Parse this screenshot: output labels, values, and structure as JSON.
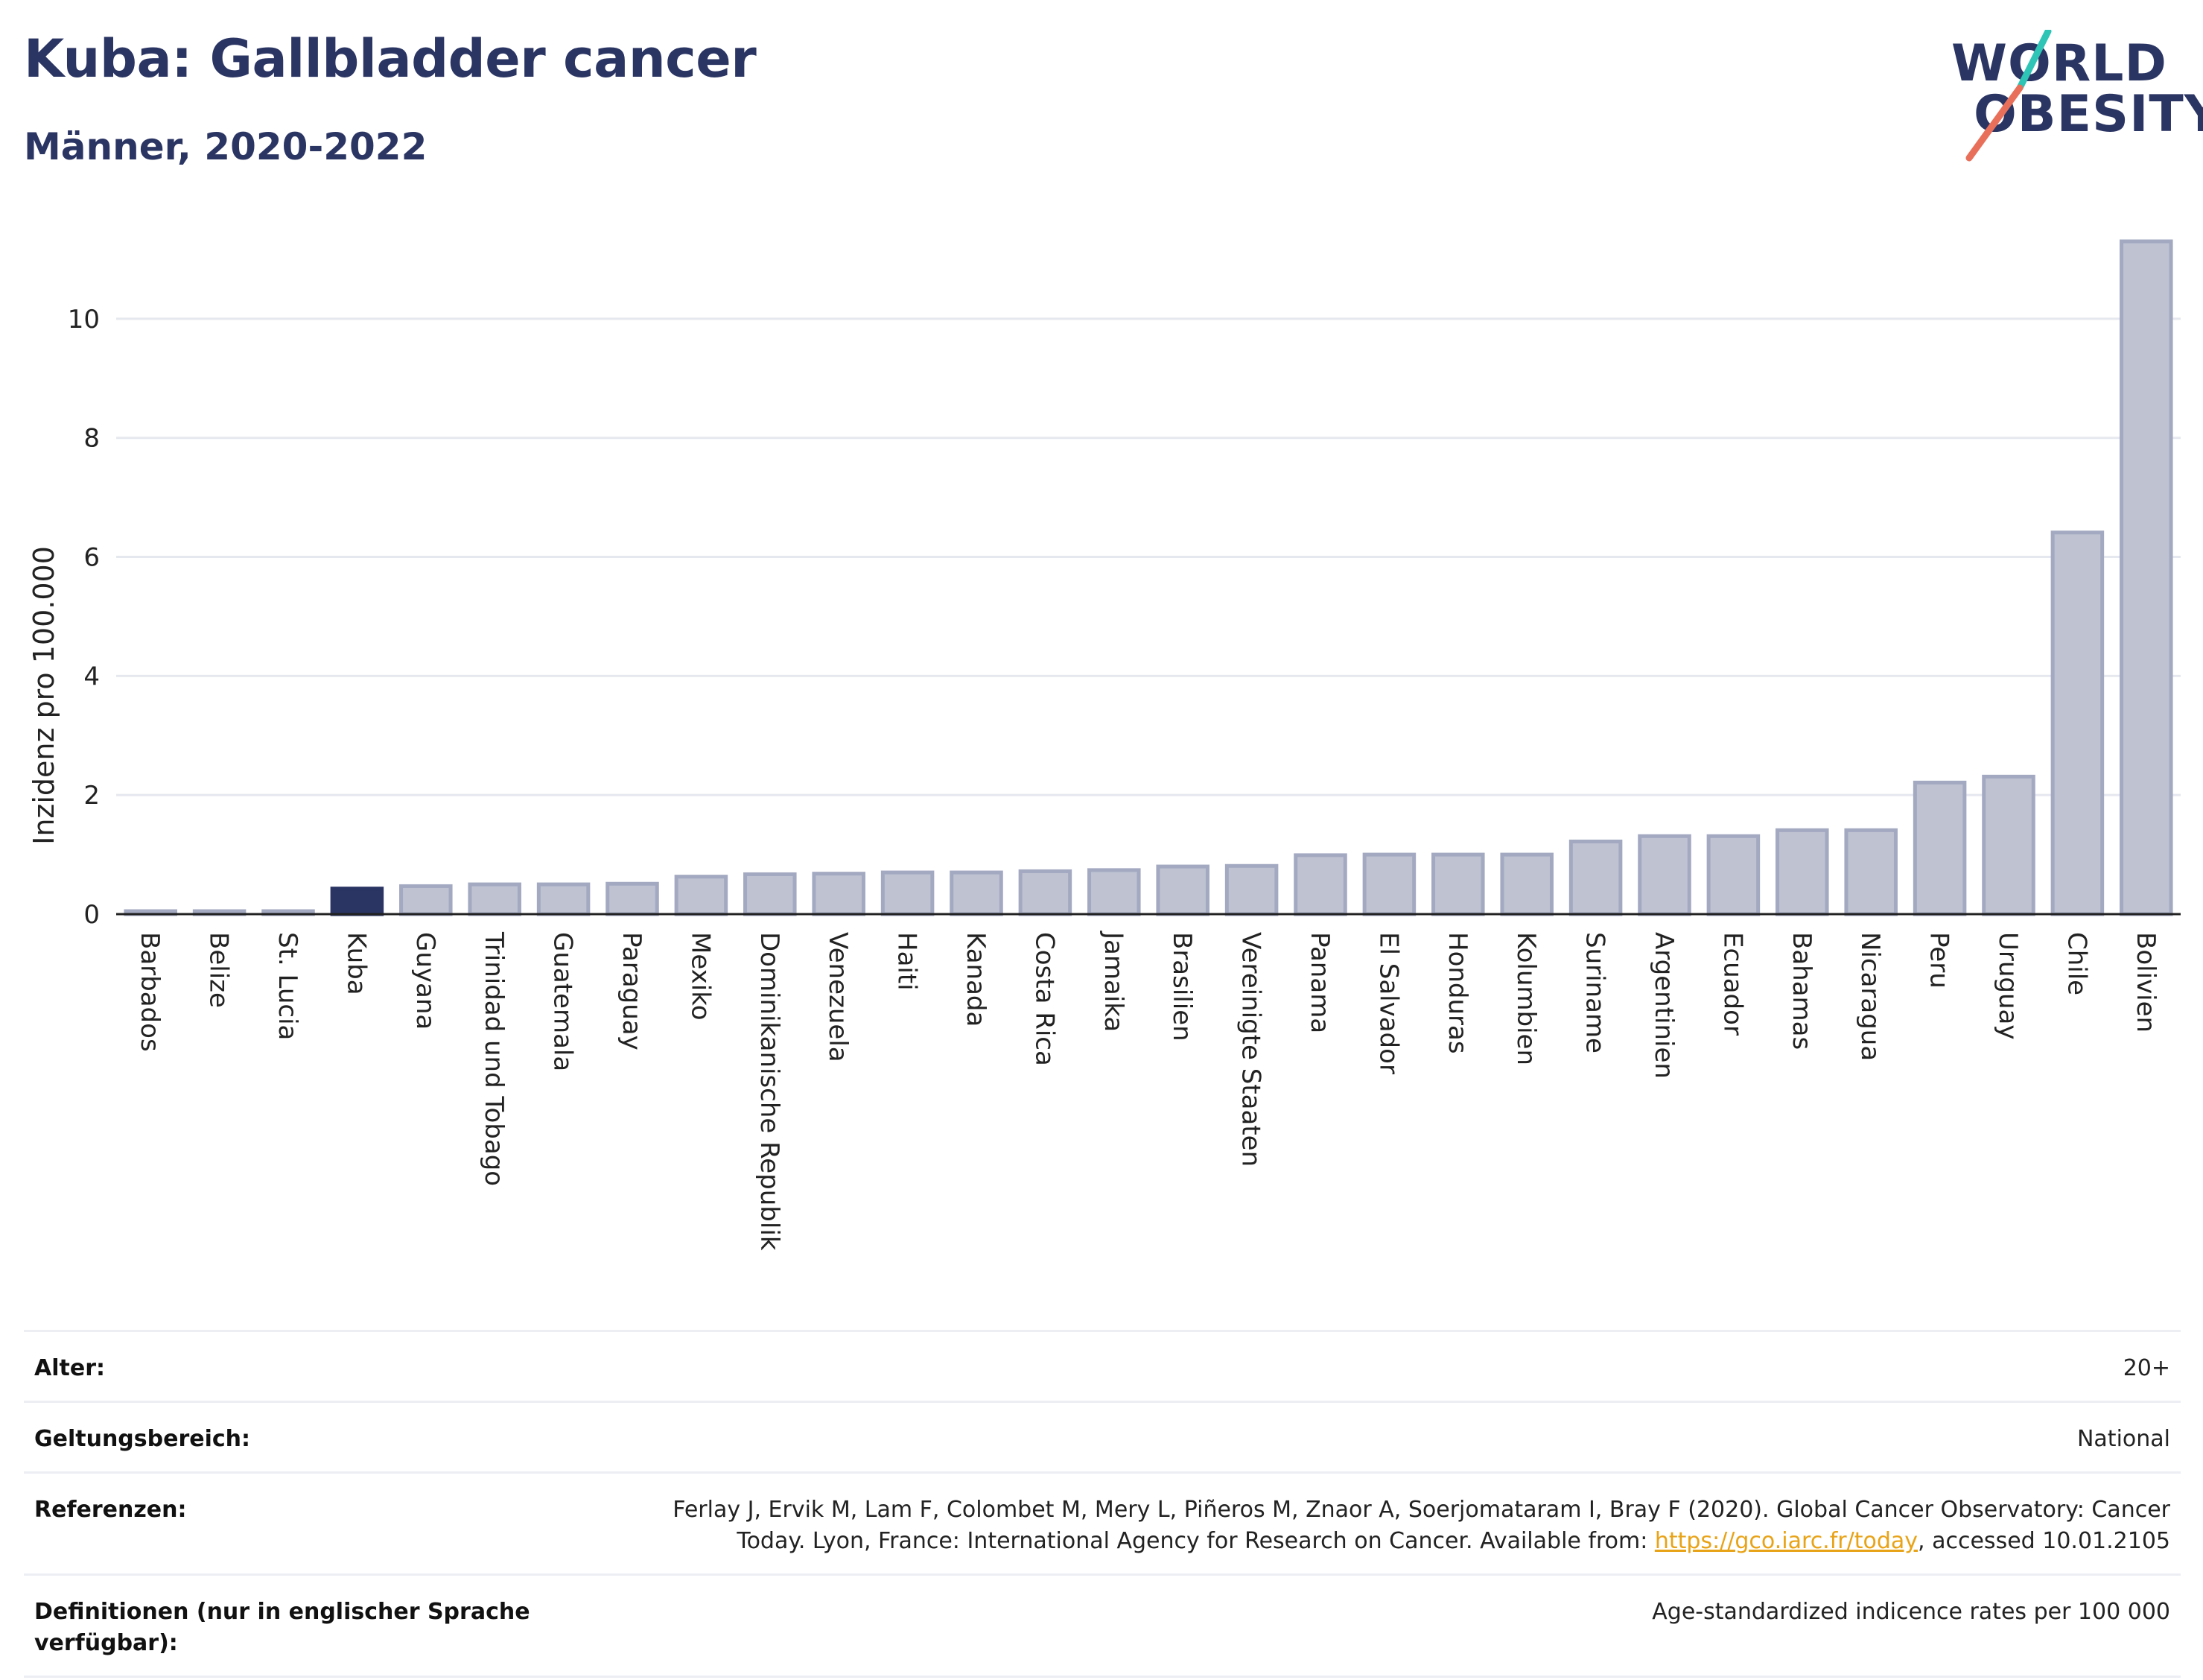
{
  "header": {
    "title": "Kuba: Gallbladder cancer",
    "subtitle": "Männer, 2020-2022"
  },
  "logo": {
    "line1": "WORLD",
    "line2": "OBESITY",
    "accent_colors": [
      "#2ec4b6",
      "#e8705b"
    ]
  },
  "colors": {
    "highlight": "#2b3563",
    "bar": "#bec2d1",
    "bar_border": "#a3a9c1",
    "grid": "#e6e8ef"
  },
  "chart_data": {
    "type": "bar",
    "ylabel": "Inzidenz pro 100.000",
    "xlabel": "",
    "ylim": [
      0,
      11.6
    ],
    "yticks": [
      0,
      2,
      4,
      6,
      8,
      10
    ],
    "grid": true,
    "highlight_category": "Kuba",
    "categories": [
      "Barbados",
      "Belize",
      "St. Lucia",
      "Kuba",
      "Guyana",
      "Trinidad und Tobago",
      "Guatemala",
      "Paraguay",
      "Mexiko",
      "Dominikanische Republik",
      "Venezuela",
      "Haiti",
      "Kanada",
      "Costa Rica",
      "Jamaika",
      "Brasilien",
      "Vereinigte Staaten",
      "Panama",
      "El Salvador",
      "Honduras",
      "Kolumbien",
      "Suriname",
      "Argentinien",
      "Ecuador",
      "Bahamas",
      "Nicaragua",
      "Peru",
      "Uruguay",
      "Chile",
      "Bolivien"
    ],
    "values": [
      0.05,
      0.05,
      0.05,
      0.43,
      0.47,
      0.5,
      0.5,
      0.51,
      0.63,
      0.67,
      0.68,
      0.7,
      0.7,
      0.72,
      0.74,
      0.8,
      0.81,
      0.99,
      1.0,
      1.0,
      1.0,
      1.22,
      1.31,
      1.31,
      1.41,
      1.41,
      2.21,
      2.31,
      6.41,
      11.3
    ]
  },
  "meta": [
    {
      "key": "Alter:",
      "value": "20+"
    },
    {
      "key": "Geltungsbereich:",
      "value": "National"
    },
    {
      "key": "Referenzen:",
      "value_pre": "Ferlay J, Ervik M, Lam F, Colombet M, Mery L, Piñeros M, Znaor A, Soerjomataram I, Bray F (2020). Global Cancer Observatory: Cancer Today. Lyon, France: International Agency for Research on Cancer. Available from: ",
      "link": "https://gco.iarc.fr/today",
      "value_post": ", accessed 10.01.2105"
    },
    {
      "key": "Definitionen (nur in englischer Sprache verfügbar):",
      "value": "Age-standardized indicence rates per 100 000"
    }
  ]
}
